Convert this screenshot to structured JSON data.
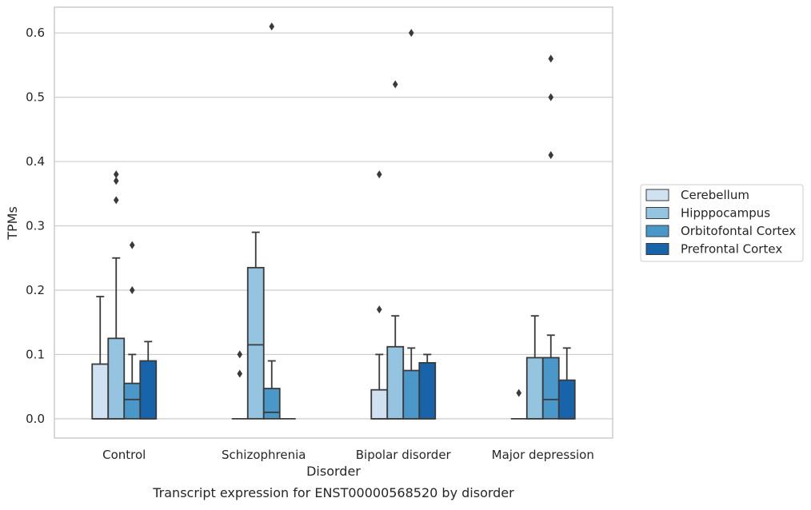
{
  "chart_data": {
    "type": "box",
    "caption": "Transcript expression for ENST00000568520 by disorder",
    "xlabel": "Disorder",
    "ylabel": "TPMs",
    "ylim": [
      -0.03,
      0.64
    ],
    "yticks": [
      0.0,
      0.1,
      0.2,
      0.3,
      0.4,
      0.5,
      0.6
    ],
    "ytick_labels": [
      "0.0",
      "0.1",
      "0.2",
      "0.3",
      "0.4",
      "0.5",
      "0.6"
    ],
    "grid": true,
    "legend_position": "right",
    "categories": [
      "Control",
      "Schizophrenia",
      "Bipolar disorder",
      "Major depression"
    ],
    "series": [
      {
        "name": "Cerebellum",
        "color": "#d0e1f2",
        "boxes": [
          {
            "q1": 0.0,
            "median": 0.0,
            "q3": 0.085,
            "whisker_low": 0.0,
            "whisker_high": 0.19,
            "outliers": []
          },
          {
            "q1": 0.0,
            "median": 0.0,
            "q3": 0.0,
            "whisker_low": 0.0,
            "whisker_high": 0.0,
            "outliers": [
              0.07,
              0.1
            ]
          },
          {
            "q1": 0.0,
            "median": 0.0,
            "q3": 0.045,
            "whisker_low": 0.0,
            "whisker_high": 0.1,
            "outliers": [
              0.38,
              0.17
            ]
          },
          {
            "q1": 0.0,
            "median": 0.0,
            "q3": 0.0,
            "whisker_low": 0.0,
            "whisker_high": 0.0,
            "outliers": [
              0.04
            ]
          }
        ]
      },
      {
        "name": "Hipppocampus",
        "color": "#94c4df",
        "boxes": [
          {
            "q1": 0.0,
            "median": 0.0,
            "q3": 0.125,
            "whisker_low": 0.0,
            "whisker_high": 0.25,
            "outliers": [
              0.34,
              0.37,
              0.38
            ]
          },
          {
            "q1": 0.0,
            "median": 0.115,
            "q3": 0.235,
            "whisker_low": 0.0,
            "whisker_high": 0.29,
            "outliers": []
          },
          {
            "q1": 0.0,
            "median": 0.0,
            "q3": 0.112,
            "whisker_low": 0.0,
            "whisker_high": 0.16,
            "outliers": [
              0.52
            ]
          },
          {
            "q1": 0.0,
            "median": 0.0,
            "q3": 0.095,
            "whisker_low": 0.0,
            "whisker_high": 0.16,
            "outliers": []
          }
        ]
      },
      {
        "name": "Orbitofontal Cortex",
        "color": "#4a98c9",
        "boxes": [
          {
            "q1": 0.0,
            "median": 0.03,
            "q3": 0.055,
            "whisker_low": 0.0,
            "whisker_high": 0.1,
            "outliers": [
              0.2,
              0.27
            ]
          },
          {
            "q1": 0.0,
            "median": 0.01,
            "q3": 0.047,
            "whisker_low": 0.0,
            "whisker_high": 0.09,
            "outliers": [
              0.61
            ]
          },
          {
            "q1": 0.0,
            "median": 0.0,
            "q3": 0.075,
            "whisker_low": 0.0,
            "whisker_high": 0.11,
            "outliers": [
              0.6
            ]
          },
          {
            "q1": 0.0,
            "median": 0.03,
            "q3": 0.095,
            "whisker_low": 0.0,
            "whisker_high": 0.13,
            "outliers": [
              0.41,
              0.5,
              0.56
            ]
          }
        ]
      },
      {
        "name": "Prefrontal Cortex",
        "color": "#1764ab",
        "boxes": [
          {
            "q1": 0.0,
            "median": 0.0,
            "q3": 0.09,
            "whisker_low": 0.0,
            "whisker_high": 0.12,
            "outliers": []
          },
          {
            "q1": 0.0,
            "median": 0.0,
            "q3": 0.0,
            "whisker_low": 0.0,
            "whisker_high": 0.0,
            "outliers": []
          },
          {
            "q1": 0.0,
            "median": 0.0,
            "q3": 0.087,
            "whisker_low": 0.0,
            "whisker_high": 0.1,
            "outliers": []
          },
          {
            "q1": 0.0,
            "median": 0.0,
            "q3": 0.06,
            "whisker_low": 0.0,
            "whisker_high": 0.11,
            "outliers": []
          }
        ]
      }
    ]
  }
}
